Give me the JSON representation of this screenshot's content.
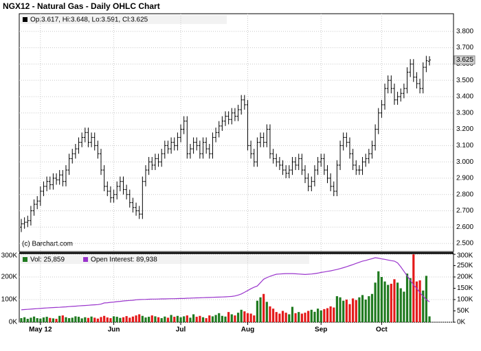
{
  "chart_data": [
    {
      "type": "ohlc",
      "title": "NGX12 - Natural Gas - Daily OHLC Chart",
      "legend_text": "Op:3.617, Hi:3.648, Lo:3.591, Cl:3.625",
      "credit": "(c) Barchart.com",
      "color": "#000000",
      "ylim": [
        2.45,
        3.9
      ],
      "yticks": [
        {
          "value": 2.5,
          "label": "2.500"
        },
        {
          "value": 2.6,
          "label": "2.600"
        },
        {
          "value": 2.7,
          "label": "2.700"
        },
        {
          "value": 2.8,
          "label": "2.800"
        },
        {
          "value": 2.9,
          "label": "2.900"
        },
        {
          "value": 3.0,
          "label": "3.000"
        },
        {
          "value": 3.1,
          "label": "3.100"
        },
        {
          "value": 3.2,
          "label": "3.200"
        },
        {
          "value": 3.3,
          "label": "3.300"
        },
        {
          "value": 3.4,
          "label": "3.400"
        },
        {
          "value": 3.5,
          "label": "3.500"
        },
        {
          "value": 3.6,
          "label": "3.600"
        },
        {
          "value": 3.7,
          "label": "3.700"
        },
        {
          "value": 3.8,
          "label": "3.800"
        }
      ],
      "grid": true,
      "open": [
        2.6,
        2.62,
        2.63,
        2.64,
        2.7,
        2.74,
        2.76,
        2.82,
        2.85,
        2.88,
        2.86,
        2.9,
        2.89,
        2.92,
        2.88,
        2.95,
        3.02,
        3.05,
        3.08,
        3.12,
        3.15,
        3.18,
        3.12,
        3.15,
        3.1,
        3.05,
        2.95,
        2.85,
        2.82,
        2.78,
        2.8,
        2.85,
        2.88,
        2.83,
        2.8,
        2.75,
        2.72,
        2.7,
        2.68,
        2.88,
        2.95,
        3.0,
        2.98,
        3.02,
        3.0,
        3.05,
        3.1,
        3.08,
        3.12,
        3.1,
        3.15,
        3.2,
        3.25,
        3.05,
        3.08,
        3.12,
        3.1,
        3.05,
        3.12,
        3.08,
        3.05,
        3.15,
        3.18,
        3.22,
        3.25,
        3.28,
        3.26,
        3.3,
        3.28,
        3.32,
        3.38,
        3.35,
        3.1,
        3.05,
        3.0,
        3.12,
        3.15,
        3.12,
        3.2,
        3.05,
        3.02,
        3.0,
        2.98,
        2.95,
        2.93,
        2.95,
        3.0,
        2.98,
        3.02,
        2.95,
        2.9,
        2.85,
        2.88,
        2.95,
        3.0,
        3.02,
        2.95,
        2.9,
        2.85,
        2.82,
        2.98,
        3.1,
        3.15,
        3.12,
        3.05,
        2.98,
        2.95,
        2.95,
        3.0,
        3.02,
        3.05,
        3.1,
        3.2,
        3.3,
        3.35,
        3.45,
        3.5,
        3.45,
        3.38,
        3.4,
        3.42,
        3.45,
        3.55,
        3.6,
        3.52,
        3.48,
        3.45,
        3.58,
        3.617
      ],
      "high": [
        2.65,
        2.66,
        2.67,
        2.73,
        2.77,
        2.79,
        2.85,
        2.88,
        2.91,
        2.91,
        2.93,
        2.93,
        2.95,
        2.95,
        2.98,
        3.05,
        3.08,
        3.11,
        3.15,
        3.18,
        3.21,
        3.21,
        3.18,
        3.18,
        3.13,
        3.08,
        2.98,
        2.88,
        2.85,
        2.83,
        2.88,
        2.91,
        2.91,
        2.86,
        2.83,
        2.78,
        2.75,
        2.73,
        2.91,
        2.98,
        3.03,
        3.03,
        3.05,
        3.05,
        3.08,
        3.13,
        3.13,
        3.15,
        3.15,
        3.18,
        3.23,
        3.28,
        3.28,
        3.11,
        3.15,
        3.15,
        3.13,
        3.15,
        3.15,
        3.11,
        3.18,
        3.21,
        3.25,
        3.28,
        3.31,
        3.31,
        3.33,
        3.33,
        3.35,
        3.41,
        3.41,
        3.38,
        3.13,
        3.08,
        3.15,
        3.18,
        3.18,
        3.23,
        3.23,
        3.08,
        3.05,
        3.03,
        3.01,
        2.98,
        2.98,
        3.03,
        3.03,
        3.05,
        3.05,
        2.98,
        2.93,
        2.91,
        2.98,
        3.03,
        3.05,
        3.05,
        2.98,
        2.93,
        2.88,
        3.01,
        3.13,
        3.18,
        3.18,
        3.15,
        3.08,
        3.01,
        2.98,
        3.03,
        3.05,
        3.08,
        3.13,
        3.23,
        3.33,
        3.38,
        3.48,
        3.53,
        3.53,
        3.48,
        3.43,
        3.45,
        3.48,
        3.58,
        3.63,
        3.63,
        3.55,
        3.51,
        3.61,
        3.65,
        3.648
      ],
      "low": [
        2.57,
        2.59,
        2.6,
        2.61,
        2.67,
        2.71,
        2.73,
        2.79,
        2.82,
        2.83,
        2.83,
        2.86,
        2.86,
        2.85,
        2.85,
        2.92,
        2.99,
        3.02,
        3.05,
        3.09,
        3.12,
        3.09,
        3.09,
        3.07,
        3.02,
        2.92,
        2.82,
        2.79,
        2.75,
        2.75,
        2.77,
        2.82,
        2.8,
        2.77,
        2.72,
        2.69,
        2.67,
        2.65,
        2.65,
        2.85,
        2.92,
        2.95,
        2.95,
        2.97,
        2.97,
        3.02,
        3.05,
        3.05,
        3.07,
        3.07,
        3.12,
        3.17,
        3.02,
        3.02,
        3.05,
        3.07,
        3.02,
        3.02,
        3.05,
        3.02,
        3.02,
        3.12,
        3.15,
        3.19,
        3.22,
        3.23,
        3.23,
        3.25,
        3.25,
        3.29,
        3.32,
        3.07,
        3.02,
        2.97,
        2.97,
        3.09,
        3.09,
        3.09,
        3.02,
        2.99,
        2.97,
        2.95,
        2.92,
        2.9,
        2.9,
        2.92,
        2.95,
        2.95,
        2.92,
        2.87,
        2.82,
        2.82,
        2.85,
        2.92,
        2.97,
        2.92,
        2.87,
        2.82,
        2.79,
        2.79,
        2.95,
        3.07,
        3.09,
        3.02,
        2.95,
        2.92,
        2.92,
        2.92,
        2.97,
        2.99,
        3.02,
        3.07,
        3.17,
        3.27,
        3.32,
        3.42,
        3.42,
        3.35,
        3.35,
        3.37,
        3.39,
        3.42,
        3.52,
        3.49,
        3.45,
        3.42,
        3.42,
        3.55,
        3.591
      ],
      "close": [
        2.62,
        2.63,
        2.64,
        2.7,
        2.74,
        2.76,
        2.82,
        2.85,
        2.88,
        2.86,
        2.9,
        2.89,
        2.92,
        2.88,
        2.95,
        3.02,
        3.05,
        3.08,
        3.12,
        3.15,
        3.18,
        3.12,
        3.15,
        3.1,
        3.05,
        2.95,
        2.85,
        2.82,
        2.78,
        2.8,
        2.85,
        2.88,
        2.83,
        2.8,
        2.75,
        2.72,
        2.7,
        2.68,
        2.88,
        2.95,
        3.0,
        2.98,
        3.02,
        3.0,
        3.05,
        3.1,
        3.08,
        3.12,
        3.1,
        3.15,
        3.2,
        3.25,
        3.05,
        3.08,
        3.12,
        3.1,
        3.05,
        3.12,
        3.08,
        3.05,
        3.15,
        3.18,
        3.22,
        3.25,
        3.28,
        3.26,
        3.3,
        3.28,
        3.32,
        3.38,
        3.35,
        3.1,
        3.05,
        3.0,
        3.12,
        3.15,
        3.12,
        3.2,
        3.05,
        3.02,
        3.0,
        2.98,
        2.95,
        2.93,
        2.95,
        3.0,
        2.98,
        3.02,
        2.95,
        2.9,
        2.85,
        2.88,
        2.95,
        3.0,
        3.02,
        2.95,
        2.9,
        2.85,
        2.82,
        2.98,
        3.1,
        3.15,
        3.12,
        3.05,
        2.98,
        2.95,
        2.95,
        3.0,
        3.02,
        3.05,
        3.1,
        3.2,
        3.3,
        3.35,
        3.45,
        3.5,
        3.45,
        3.38,
        3.4,
        3.42,
        3.45,
        3.55,
        3.6,
        3.52,
        3.48,
        3.45,
        3.58,
        3.62,
        3.625
      ]
    },
    {
      "type": "volume",
      "categories": [
        null,
        null,
        null,
        null,
        null,
        null,
        "May 12",
        null,
        null,
        null,
        null,
        null,
        null,
        null,
        null,
        null,
        null,
        null,
        null,
        null,
        null,
        null,
        null,
        null,
        null,
        null,
        null,
        null,
        null,
        "Jun",
        null,
        null,
        null,
        null,
        null,
        null,
        null,
        null,
        null,
        null,
        null,
        null,
        null,
        null,
        null,
        null,
        null,
        null,
        null,
        null,
        "Jul",
        null,
        null,
        null,
        null,
        null,
        null,
        null,
        null,
        null,
        null,
        null,
        null,
        null,
        null,
        null,
        null,
        null,
        null,
        null,
        null,
        "Aug",
        null,
        null,
        null,
        null,
        null,
        null,
        null,
        null,
        null,
        null,
        null,
        null,
        null,
        null,
        null,
        null,
        null,
        null,
        null,
        null,
        null,
        null,
        "Sep",
        null,
        null,
        null,
        null,
        null,
        null,
        null,
        null,
        null,
        null,
        null,
        null,
        null,
        null,
        null,
        null,
        null,
        null,
        "Oct",
        null,
        null,
        null,
        null,
        null,
        null,
        null,
        null,
        null,
        null,
        null,
        null,
        null,
        null,
        null
      ],
      "ylim": [
        0,
        300000
      ],
      "yticks": [
        {
          "value": 0,
          "label": "0K"
        },
        {
          "value": 100000,
          "label": "100K"
        },
        {
          "value": 200000,
          "label": "200K"
        },
        {
          "value": 300000,
          "label": "300K"
        }
      ],
      "y2lim": [
        0,
        300000
      ],
      "y2ticks": [
        {
          "value": 0,
          "label": "0K"
        },
        {
          "value": 50000,
          "label": "50K"
        },
        {
          "value": 100000,
          "label": "100K"
        },
        {
          "value": 150000,
          "label": "150K"
        },
        {
          "value": 200000,
          "label": "200K"
        },
        {
          "value": 250000,
          "label": "250K"
        },
        {
          "value": 300000,
          "label": "300K"
        }
      ],
      "grid": true,
      "up_color": "#1f7a1f",
      "down_color": "#e41a1a",
      "series": [
        {
          "name": "Vol: 25,859",
          "color": "#1f7a1f",
          "values": [
            18000,
            22000,
            15000,
            20000,
            25000,
            18000,
            16000,
            21000,
            24000,
            19000,
            17000,
            15000,
            28000,
            30000,
            22000,
            18000,
            20000,
            26000,
            24000,
            17000,
            22000,
            19000,
            25000,
            20000,
            16000,
            23000,
            28000,
            21000,
            18000,
            26000,
            24000,
            19000,
            22000,
            27000,
            20000,
            25000,
            30000,
            35000,
            28000,
            21000,
            24000,
            30000,
            26000,
            22000,
            18000,
            25000,
            20000,
            32000,
            24000,
            28000,
            22000,
            26000,
            30000,
            20000,
            35000,
            24000,
            28000,
            22000,
            18000,
            30000,
            26000,
            32000,
            40000,
            28000,
            25000,
            45000,
            35000,
            30000,
            42000,
            55000,
            48000,
            40000,
            38000,
            30000,
            95000,
            110000,
            125000,
            90000,
            70000,
            60000,
            45000,
            38000,
            50000,
            42000,
            35000,
            68000,
            40000,
            45000,
            38000,
            42000,
            50000,
            55000,
            46000,
            60000,
            52000,
            58000,
            62000,
            70000,
            65000,
            115000,
            110000,
            95000,
            100000,
            80000,
            105000,
            98000,
            110000,
            120000,
            100000,
            115000,
            125000,
            175000,
            225000,
            200000,
            180000,
            165000,
            170000,
            190000,
            175000,
            150000,
            135000,
            215000,
            195000,
            300000,
            180000,
            185000,
            140000,
            205000,
            25859
          ]
        },
        {
          "name": "Open Interest: 89,938",
          "color": "#9933cc",
          "axis": "y2",
          "values": [
            55000,
            56000,
            57000,
            58000,
            59000,
            60000,
            61000,
            62000,
            63000,
            64000,
            65000,
            65500,
            66000,
            67000,
            68000,
            69000,
            70000,
            71000,
            72000,
            73000,
            74000,
            75000,
            76000,
            77000,
            78000,
            80000,
            85000,
            86000,
            88000,
            89000,
            91000,
            92000,
            94000,
            95000,
            96000,
            97000,
            99000,
            100000,
            100500,
            101000,
            101500,
            102000,
            102000,
            102500,
            103000,
            103000,
            103500,
            104000,
            104000,
            104500,
            105000,
            105000,
            106000,
            106500,
            107000,
            107500,
            108000,
            108500,
            109000,
            109500,
            110000,
            110500,
            111000,
            111500,
            112000,
            113000,
            114000,
            116000,
            120000,
            125000,
            132000,
            140000,
            148000,
            155000,
            160000,
            175000,
            190000,
            197000,
            203000,
            208000,
            212000,
            213000,
            214000,
            215000,
            215000,
            215000,
            214000,
            213000,
            212000,
            211000,
            212000,
            213000,
            215000,
            217000,
            220000,
            222000,
            225000,
            227000,
            230000,
            233000,
            237000,
            241000,
            245000,
            250000,
            255000,
            260000,
            265000,
            270000,
            273000,
            277000,
            281000,
            285000,
            283000,
            280000,
            278000,
            275000,
            272000,
            270000,
            262000,
            245000,
            225000,
            205000,
            185000,
            165000,
            150000,
            130000,
            115000,
            100000,
            89938
          ]
        }
      ]
    }
  ]
}
